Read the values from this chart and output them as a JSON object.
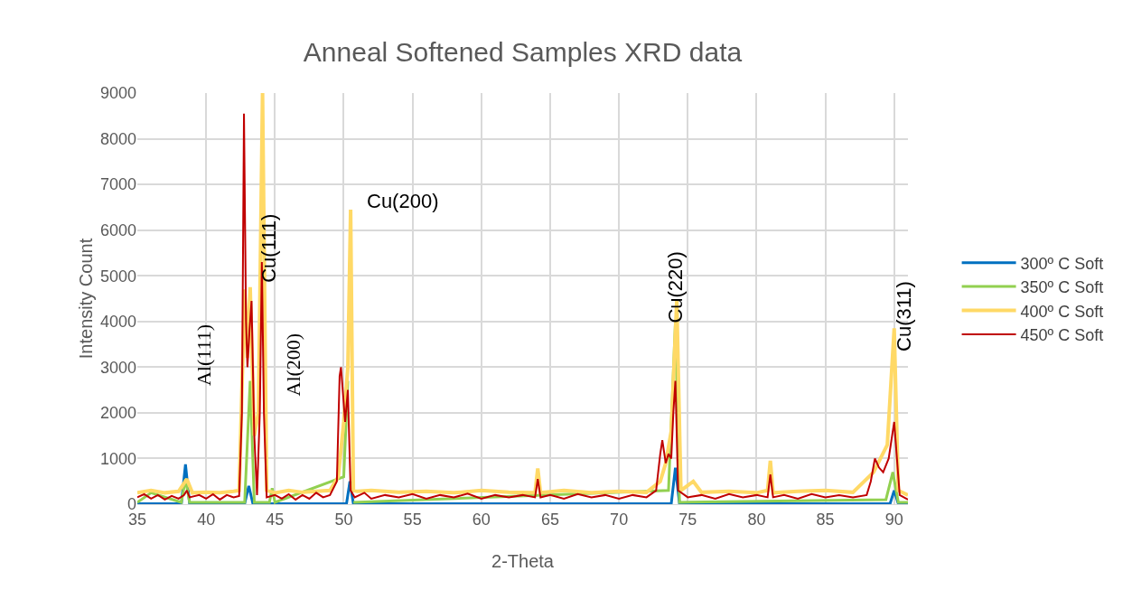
{
  "chart_data": {
    "type": "line",
    "title": "Anneal Softened Samples XRD data",
    "xlabel": "2-Theta",
    "ylabel": "Intensity Count",
    "xlim": [
      35,
      91
    ],
    "xticks": [
      35,
      40,
      45,
      50,
      55,
      60,
      65,
      70,
      75,
      80,
      85,
      90
    ],
    "ylim": [
      0,
      9000
    ],
    "yticks": [
      0,
      1000,
      2000,
      3000,
      4000,
      5000,
      6000,
      7000,
      8000,
      9000
    ],
    "grid": true,
    "legend": "right",
    "marker": "none",
    "line_style": "solid",
    "series": [
      {
        "name": "300º C Soft",
        "color": "#0070c0",
        "x": [
          35,
          38.2,
          38.5,
          38.8,
          42.8,
          43.1,
          43.4,
          50.2,
          50.45,
          50.7,
          73.8,
          74.1,
          74.4,
          89.7,
          90,
          90.3,
          91
        ],
        "values": [
          10,
          10,
          870,
          10,
          10,
          400,
          10,
          10,
          500,
          10,
          10,
          800,
          10,
          10,
          300,
          10,
          10
        ]
      },
      {
        "name": "350º C Soft",
        "color": "#92d050",
        "x": [
          35,
          36,
          38.2,
          38.5,
          38.8,
          42.8,
          43.2,
          43.5,
          44.6,
          44.8,
          45,
          50,
          50.3,
          50.45,
          50.7,
          73.6,
          74.1,
          74.4,
          89.4,
          89.9,
          90.3,
          91
        ],
        "values": [
          40,
          250,
          40,
          550,
          40,
          40,
          2700,
          40,
          40,
          350,
          40,
          600,
          2700,
          null,
          40,
          300,
          4000,
          40,
          100,
          700,
          40,
          40
        ]
      },
      {
        "name": "400º C Soft",
        "color": "#ffd966",
        "x": [
          35,
          36,
          37,
          38,
          38.6,
          39,
          40,
          41,
          42,
          42.4,
          42.8,
          43.0,
          43.2,
          43.5,
          43.8,
          44.1,
          44.4,
          45,
          46,
          47,
          48,
          49,
          49.6,
          50.0,
          50.3,
          50.5,
          50.7,
          51,
          52,
          54,
          56,
          58,
          60,
          62,
          63.9,
          64.1,
          64.3,
          66,
          68,
          70,
          72,
          73,
          73.4,
          73.8,
          74.2,
          74.5,
          75.4,
          76,
          78,
          80,
          80.8,
          81.0,
          81.2,
          83,
          85,
          87,
          88.5,
          89.5,
          90.0,
          90.3,
          91
        ],
        "values": [
          250,
          300,
          250,
          280,
          550,
          250,
          260,
          250,
          280,
          300,
          4700,
          3200,
          4750,
          1500,
          2000,
          9000,
          300,
          250,
          300,
          260,
          280,
          300,
          600,
          1800,
          3000,
          6450,
          300,
          280,
          300,
          260,
          280,
          250,
          300,
          260,
          250,
          780,
          250,
          300,
          250,
          280,
          260,
          500,
          900,
          1600,
          4450,
          300,
          500,
          260,
          280,
          250,
          300,
          950,
          250,
          280,
          300,
          260,
          700,
          1300,
          3850,
          300,
          200
        ]
      },
      {
        "name": "450º C Soft",
        "color": "#c00000",
        "x": [
          35,
          35.5,
          36,
          36.5,
          37,
          37.5,
          38,
          38.4,
          38.6,
          38.8,
          39.5,
          40,
          40.5,
          41,
          41.5,
          42,
          42.4,
          42.6,
          42.75,
          42.9,
          43.0,
          43.15,
          43.3,
          43.5,
          43.7,
          43.9,
          44.05,
          44.2,
          44.4,
          45,
          45.5,
          46,
          46.5,
          47,
          47.5,
          48,
          48.5,
          49,
          49.5,
          49.7,
          49.8,
          50.0,
          50.1,
          50.3,
          50.5,
          50.8,
          51.5,
          52,
          53,
          54,
          55,
          56,
          57,
          58,
          59,
          60,
          61,
          62,
          63,
          63.9,
          64.1,
          64.3,
          65,
          66,
          67,
          68,
          69,
          70,
          71,
          72,
          72.7,
          73.0,
          73.15,
          73.4,
          73.6,
          73.8,
          73.95,
          74.1,
          74.3,
          75,
          76,
          77,
          78,
          79,
          80,
          80.8,
          81.0,
          81.2,
          82,
          83,
          84,
          85,
          86,
          87,
          88,
          88.3,
          88.6,
          88.9,
          89.2,
          89.6,
          90.0,
          90.2,
          90.4,
          91
        ],
        "values": [
          150,
          220,
          120,
          200,
          100,
          180,
          120,
          200,
          300,
          150,
          200,
          120,
          220,
          100,
          200,
          150,
          180,
          2000,
          8550,
          4000,
          3000,
          3800,
          4450,
          1500,
          200,
          2000,
          5300,
          2000,
          150,
          200,
          120,
          220,
          100,
          200,
          120,
          250,
          150,
          200,
          500,
          2800,
          3000,
          2200,
          1800,
          2500,
          300,
          150,
          250,
          120,
          200,
          150,
          220,
          120,
          200,
          150,
          230,
          120,
          200,
          150,
          200,
          150,
          550,
          150,
          200,
          120,
          220,
          150,
          200,
          120,
          200,
          150,
          300,
          1100,
          1400,
          900,
          1100,
          1000,
          2000,
          2700,
          300,
          150,
          200,
          120,
          220,
          150,
          200,
          150,
          650,
          150,
          200,
          120,
          220,
          150,
          200,
          150,
          200,
          500,
          1000,
          800,
          700,
          1000,
          1800,
          1000,
          200,
          100
        ]
      }
    ],
    "annotations": [
      "Al(111)",
      "Cu(111)",
      "Al(200)",
      "Cu(200)",
      "Cu(220)",
      "Cu(311)"
    ]
  }
}
